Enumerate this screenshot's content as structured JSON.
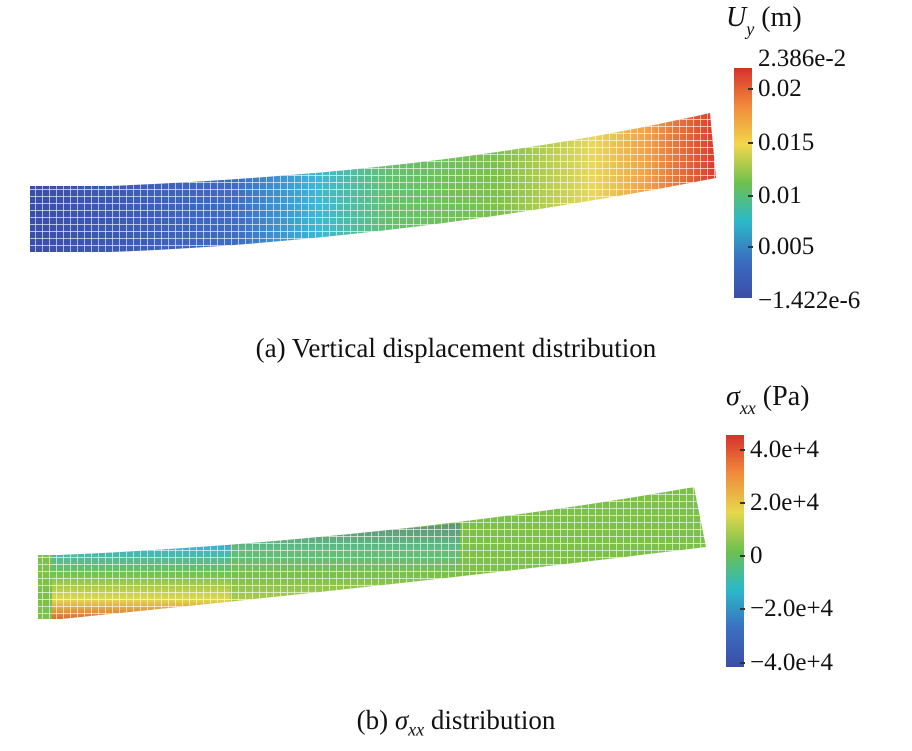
{
  "panel_a": {
    "colorbar": {
      "symbol": "U",
      "subscript": "y",
      "unit": "(m)",
      "max_label": "2.386e-2",
      "min_label": "−1.422e-6",
      "ticks": [
        "0.02",
        "0.015",
        "0.01",
        "0.005"
      ],
      "colors": [
        "#d7312b",
        "#f08b3c",
        "#f3d64c",
        "#6ec04e",
        "#2bb9c9",
        "#3b6fc0",
        "#3b4da8"
      ]
    },
    "caption": "(a) Vertical displacement distribution"
  },
  "panel_b": {
    "colorbar": {
      "symbol": "σ",
      "subscript": "xx",
      "unit": "(Pa)",
      "ticks": [
        "4.0e+4",
        "2.0e+4",
        "0",
        "−2.0e+4",
        "−4.0e+4"
      ],
      "colors": [
        "#d7312b",
        "#f08b3c",
        "#e6d84c",
        "#6ec04e",
        "#2bb9c9",
        "#3b6fc0",
        "#3b4da8"
      ]
    },
    "caption_prefix": "(b) ",
    "caption_symbol": "σ",
    "caption_subscript": "xx",
    "caption_suffix": " distribution"
  },
  "chart_data": [
    {
      "type": "heatmap",
      "title": "(a) Vertical displacement distribution",
      "quantity": "U_y (m)",
      "range": [
        -1.422e-06,
        0.02386
      ],
      "ticks": [
        0.005,
        0.01,
        0.015,
        0.02
      ],
      "description_free": true
    },
    {
      "type": "heatmap",
      "title": "(b) σxx distribution",
      "quantity": "σxx (Pa)",
      "range": [
        -40000,
        40000
      ],
      "ticks": [
        -40000,
        -20000,
        0,
        20000,
        40000
      ]
    }
  ]
}
